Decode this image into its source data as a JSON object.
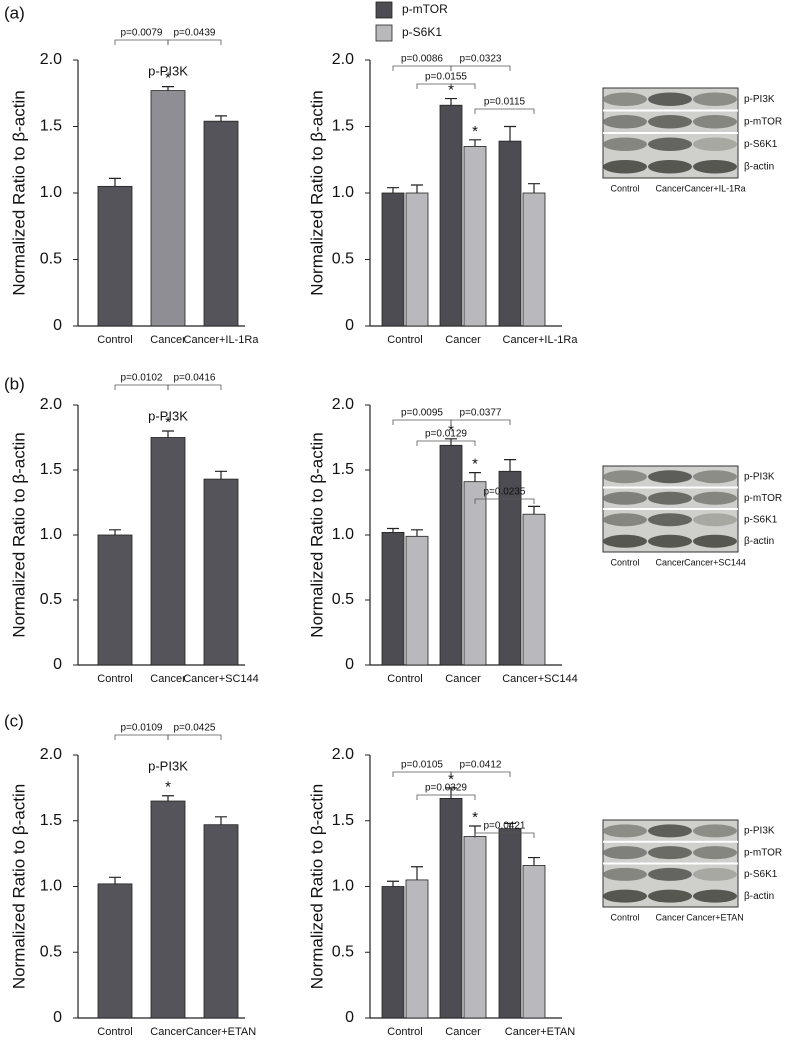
{
  "chart_data": [
    {
      "type": "bar",
      "title": "p-PI3K",
      "y_label": "Normalized Ratio to β-actin",
      "categories": [
        "Control",
        "Cancer",
        "Cancer+IL-1Ra"
      ],
      "values": [
        1.05,
        1.77,
        1.54
      ],
      "errors": [
        0.06,
        0.03,
        0.04
      ],
      "colors": [
        "#56545b",
        "#8f8e94",
        "#56545b"
      ],
      "ylim": [
        0,
        2.0
      ],
      "yticks": [
        0,
        0.5,
        {
          "value": 1.0,
          "label": "1.0"
        },
        1.5,
        {
          "value": 2.0,
          "label": "2.0"
        }
      ],
      "annotations": [
        "p=0.0079",
        "p=0.0439"
      ],
      "stars": [
        "*"
      ]
    },
    {
      "type": "grouped_bar",
      "y_label": "Normalized Ratio to β-actin",
      "categories": [
        "Control",
        "Cancer",
        "Cancer+IL-1Ra"
      ],
      "series": [
        {
          "name": "p-mTOR",
          "color": "#4d4c52",
          "values": [
            1.0,
            1.66,
            1.39
          ],
          "errors": [
            0.04,
            0.05,
            0.11
          ]
        },
        {
          "name": "p-S6K1",
          "color": "#b9b9bd",
          "values": [
            1.0,
            1.35,
            1.0
          ],
          "errors": [
            0.06,
            0.05,
            0.07
          ]
        }
      ],
      "ylim": [
        0,
        2.0
      ],
      "yticks": [
        0,
        0.5,
        {
          "value": 1.0,
          "label": "1.0"
        },
        1.5,
        {
          "value": 2.0,
          "label": "2.0"
        }
      ],
      "annotations": [
        "p=0.0086",
        "p=0.0155",
        "p=0.0323",
        "p=0.0115"
      ],
      "stars": [
        "*",
        "*"
      ]
    },
    {
      "type": "bar",
      "title": "p-PI3K",
      "y_label": "Normalized Ratio to β-actin",
      "categories": [
        "Control",
        "Cancer",
        "Cancer+SC144"
      ],
      "values": [
        1.0,
        1.75,
        1.43
      ],
      "errors": [
        0.04,
        0.05,
        0.06
      ],
      "colors": [
        "#56545b",
        "#56545b",
        "#56545b"
      ],
      "ylim": [
        0,
        2.0
      ],
      "yticks": [
        0,
        0.5,
        {
          "value": 1.0,
          "label": "1.0"
        },
        1.5,
        {
          "value": 2.0,
          "label": "2.0"
        }
      ],
      "annotations": [
        "p=0.0102",
        "p=0.0416"
      ],
      "stars": [
        "*"
      ]
    },
    {
      "type": "grouped_bar",
      "y_label": "Normalized Ratio to β-actin",
      "categories": [
        "Control",
        "Cancer",
        "Cancer+SC144"
      ],
      "series": [
        {
          "color": "#4d4c52",
          "values": [
            1.02,
            1.69,
            1.49
          ],
          "errors": [
            0.03,
            0.05,
            0.09
          ]
        },
        {
          "color": "#b9b9bd",
          "values": [
            0.99,
            1.41,
            1.16
          ],
          "errors": [
            0.05,
            0.07,
            0.06
          ]
        }
      ],
      "ylim": [
        0,
        2.0
      ],
      "yticks": [
        0,
        0.5,
        {
          "value": 1.0,
          "label": "1.0"
        },
        1.5,
        {
          "value": 2.0,
          "label": "2.0"
        }
      ],
      "annotations": [
        "p=0.0095",
        "p=0.0129",
        "p=0.0377",
        "p=0.0235"
      ],
      "stars": [
        "*",
        "*"
      ]
    },
    {
      "type": "bar",
      "title": "p-PI3K",
      "y_label": "Normalized Ratio to β-actin",
      "categories": [
        "Control",
        "Cancer",
        "Cancer+ETAN"
      ],
      "values": [
        1.02,
        1.65,
        1.47
      ],
      "errors": [
        0.05,
        0.04,
        0.06
      ],
      "colors": [
        "#56545b",
        "#56545b",
        "#56545b"
      ],
      "ylim": [
        0,
        2.0
      ],
      "yticks": [
        0,
        0.5,
        {
          "value": 1.0,
          "label": "1.0"
        },
        1.5,
        {
          "value": 2.0,
          "label": "2.0"
        }
      ],
      "annotations": [
        "p=0.0109",
        "p=0.0425"
      ],
      "stars": [
        "*"
      ]
    },
    {
      "type": "grouped_bar",
      "y_label": "Normalized Ratio to β-actin",
      "categories": [
        "Control",
        "Cancer",
        "Cancer+ETAN"
      ],
      "series": [
        {
          "color": "#4d4c52",
          "values": [
            1.0,
            1.67,
            1.44
          ],
          "errors": [
            0.04,
            0.08,
            0.04
          ]
        },
        {
          "color": "#b9b9bd",
          "values": [
            1.05,
            1.38,
            1.16
          ],
          "errors": [
            0.1,
            0.08,
            0.06
          ]
        }
      ],
      "ylim": [
        0,
        2.0
      ],
      "yticks": [
        0,
        0.5,
        {
          "value": 1.0,
          "label": "1.0"
        },
        1.5,
        {
          "value": 2.0,
          "label": "2.0"
        }
      ],
      "annotations": [
        "p=0.0105",
        "p=0.0329",
        "p=0.0412",
        "p=0.0421"
      ],
      "stars": [
        "*",
        "*"
      ]
    }
  ],
  "panels": [
    {
      "label": "(a)",
      "blot": {
        "rows": [
          "p-PI3K",
          "p-mTOR",
          "p-S6K1",
          "β-actin"
        ],
        "lanes": [
          "Control",
          "Cancer",
          "Cancer+IL-1Ra"
        ]
      }
    },
    {
      "label": "(b)",
      "blot": {
        "rows": [
          "p-PI3K",
          "p-mTOR",
          "p-S6K1",
          "β-actin"
        ],
        "lanes": [
          "Control",
          "Cancer",
          "Cancer+SC144"
        ]
      }
    },
    {
      "label": "(c)",
      "blot": {
        "rows": [
          "p-PI3K",
          "p-mTOR",
          "p-S6K1",
          "β-actin"
        ],
        "lanes": [
          "Control",
          "Cancer",
          "Cancer+ETAN"
        ]
      }
    }
  ]
}
